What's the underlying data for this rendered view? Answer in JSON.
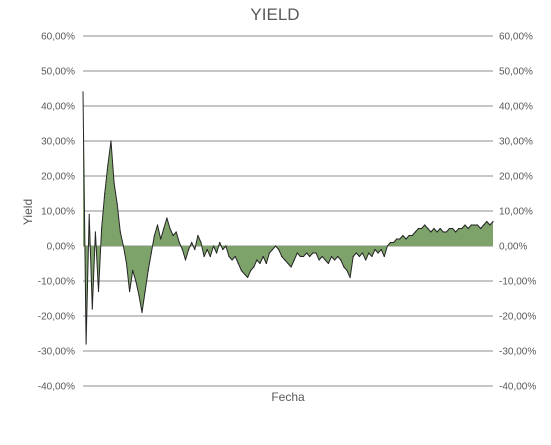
{
  "chart_data": {
    "type": "area",
    "title": "YIELD",
    "xlabel": "Fecha",
    "ylabel": "Yield",
    "ylim": [
      -0.4,
      0.6
    ],
    "yticks": [
      "60,00%",
      "50,00%",
      "40,00%",
      "30,00%",
      "20,00%",
      "10,00%",
      "0,00%",
      "-10,00%",
      "-20,00%",
      "-30,00%",
      "-40,00%"
    ],
    "grid": true,
    "legend": "none",
    "secondary_y_axis": true,
    "colors": {
      "fill": "#7ea36a",
      "line": "#262626",
      "grid": "#8c8c8c",
      "text": "#595959"
    },
    "series": [
      {
        "values": [
          0.44,
          -0.28,
          0.09,
          -0.18,
          0.04,
          -0.13,
          0.05,
          0.15,
          0.23,
          0.3,
          0.18,
          0.12,
          0.04,
          0.0,
          -0.05,
          -0.13,
          -0.07,
          -0.1,
          -0.14,
          -0.19,
          -0.13,
          -0.07,
          -0.02,
          0.03,
          0.06,
          0.02,
          0.05,
          0.08,
          0.05,
          0.03,
          0.04,
          0.01,
          -0.01,
          -0.04,
          -0.01,
          0.01,
          -0.01,
          0.03,
          0.01,
          -0.03,
          -0.01,
          -0.03,
          0.0,
          -0.02,
          0.01,
          -0.01,
          0.0,
          -0.03,
          -0.04,
          -0.03,
          -0.05,
          -0.07,
          -0.08,
          -0.09,
          -0.07,
          -0.06,
          -0.04,
          -0.05,
          -0.03,
          -0.05,
          -0.02,
          -0.01,
          0.0,
          -0.01,
          -0.03,
          -0.04,
          -0.05,
          -0.06,
          -0.04,
          -0.02,
          -0.03,
          -0.03,
          -0.02,
          -0.03,
          -0.02,
          -0.02,
          -0.04,
          -0.03,
          -0.04,
          -0.05,
          -0.03,
          -0.04,
          -0.03,
          -0.04,
          -0.06,
          -0.07,
          -0.09,
          -0.03,
          -0.02,
          -0.03,
          -0.02,
          -0.04,
          -0.02,
          -0.03,
          -0.01,
          -0.02,
          -0.01,
          -0.03,
          0.0,
          0.01,
          0.01,
          0.02,
          0.02,
          0.03,
          0.02,
          0.03,
          0.03,
          0.04,
          0.05,
          0.05,
          0.06,
          0.05,
          0.04,
          0.05,
          0.04,
          0.05,
          0.04,
          0.04,
          0.05,
          0.05,
          0.04,
          0.05,
          0.05,
          0.06,
          0.05,
          0.06,
          0.06,
          0.06,
          0.05,
          0.06,
          0.07,
          0.06,
          0.07
        ]
      }
    ]
  }
}
